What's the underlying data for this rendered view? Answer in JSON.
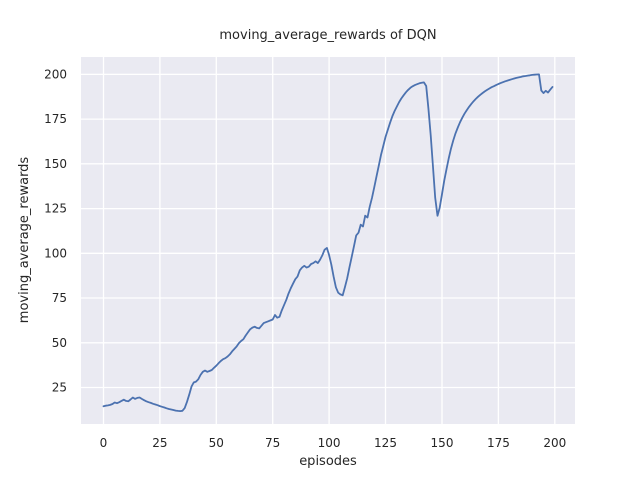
{
  "chart_data": {
    "type": "line",
    "title": "moving_average_rewards of DQN",
    "xlabel": "episodes",
    "ylabel": "moving_average_rewards",
    "x_ticks": [
      0,
      25,
      50,
      75,
      100,
      125,
      150,
      175,
      200
    ],
    "y_ticks": [
      25,
      50,
      75,
      100,
      125,
      150,
      175,
      200
    ],
    "xlim": [
      -9.95,
      208.95
    ],
    "ylim": [
      4.6,
      209.7
    ],
    "grid": true,
    "legend": "none",
    "line_color": "#4C72B0",
    "plot_bg_color": "#EAEAF2",
    "grid_color": "#FFFFFF",
    "text_color": "#262626",
    "x": {
      "start": 0,
      "step": 1,
      "count": 200
    },
    "values": [
      14.5,
      14.8,
      15.0,
      15.3,
      15.8,
      16.6,
      16.2,
      16.8,
      17.5,
      18.2,
      17.5,
      17.3,
      18.3,
      19.4,
      18.6,
      19.2,
      19.4,
      18.6,
      17.9,
      17.3,
      16.8,
      16.4,
      15.9,
      15.5,
      15.1,
      14.6,
      14.2,
      13.8,
      13.4,
      13.0,
      12.7,
      12.4,
      12.1,
      11.9,
      11.8,
      12.0,
      13.5,
      17.0,
      21.0,
      25.5,
      27.8,
      28.3,
      29.5,
      32.0,
      33.8,
      34.5,
      33.8,
      34.2,
      34.8,
      36.0,
      37.2,
      38.5,
      39.8,
      40.8,
      41.4,
      42.3,
      43.5,
      45.2,
      46.5,
      47.9,
      49.8,
      51.0,
      52.0,
      54.0,
      55.8,
      57.5,
      58.5,
      59.0,
      58.3,
      58.0,
      59.5,
      61.0,
      61.5,
      62.0,
      62.5,
      63.0,
      65.5,
      64.0,
      64.5,
      68.0,
      71.0,
      74.0,
      77.5,
      80.5,
      83.0,
      85.5,
      87.0,
      90.5,
      92.0,
      93.0,
      92.0,
      92.5,
      94.0,
      94.5,
      95.5,
      94.5,
      96.5,
      99.0,
      102.0,
      103.0,
      99.0,
      93.5,
      87.0,
      81.0,
      78.0,
      77.0,
      76.5,
      81.0,
      86.0,
      92.0,
      98.0,
      104.0,
      110.0,
      111.5,
      116.0,
      115.0,
      121.0,
      120.0,
      126.0,
      131.0,
      137.0,
      143.0,
      149.0,
      155.0,
      160.0,
      165.0,
      169.0,
      173.0,
      176.5,
      179.5,
      182.0,
      184.5,
      186.5,
      188.3,
      190.0,
      191.3,
      192.5,
      193.3,
      194.0,
      194.5,
      195.0,
      195.3,
      195.5,
      193.5,
      181.0,
      166.0,
      149.0,
      131.0,
      121.0,
      125.5,
      133.0,
      140.5,
      147.0,
      153.0,
      158.5,
      163.0,
      167.0,
      170.3,
      173.2,
      175.8,
      178.0,
      180.0,
      181.8,
      183.5,
      185.0,
      186.3,
      187.5,
      188.6,
      189.6,
      190.5,
      191.3,
      192.1,
      192.8,
      193.4,
      194.0,
      194.6,
      195.1,
      195.6,
      196.1,
      196.5,
      196.9,
      197.3,
      197.7,
      198.0,
      198.3,
      198.6,
      198.9,
      199.1,
      199.3,
      199.5,
      199.7,
      199.8,
      199.9,
      200.0,
      191.0,
      189.5,
      190.8,
      189.8,
      191.5,
      193.0
    ]
  }
}
